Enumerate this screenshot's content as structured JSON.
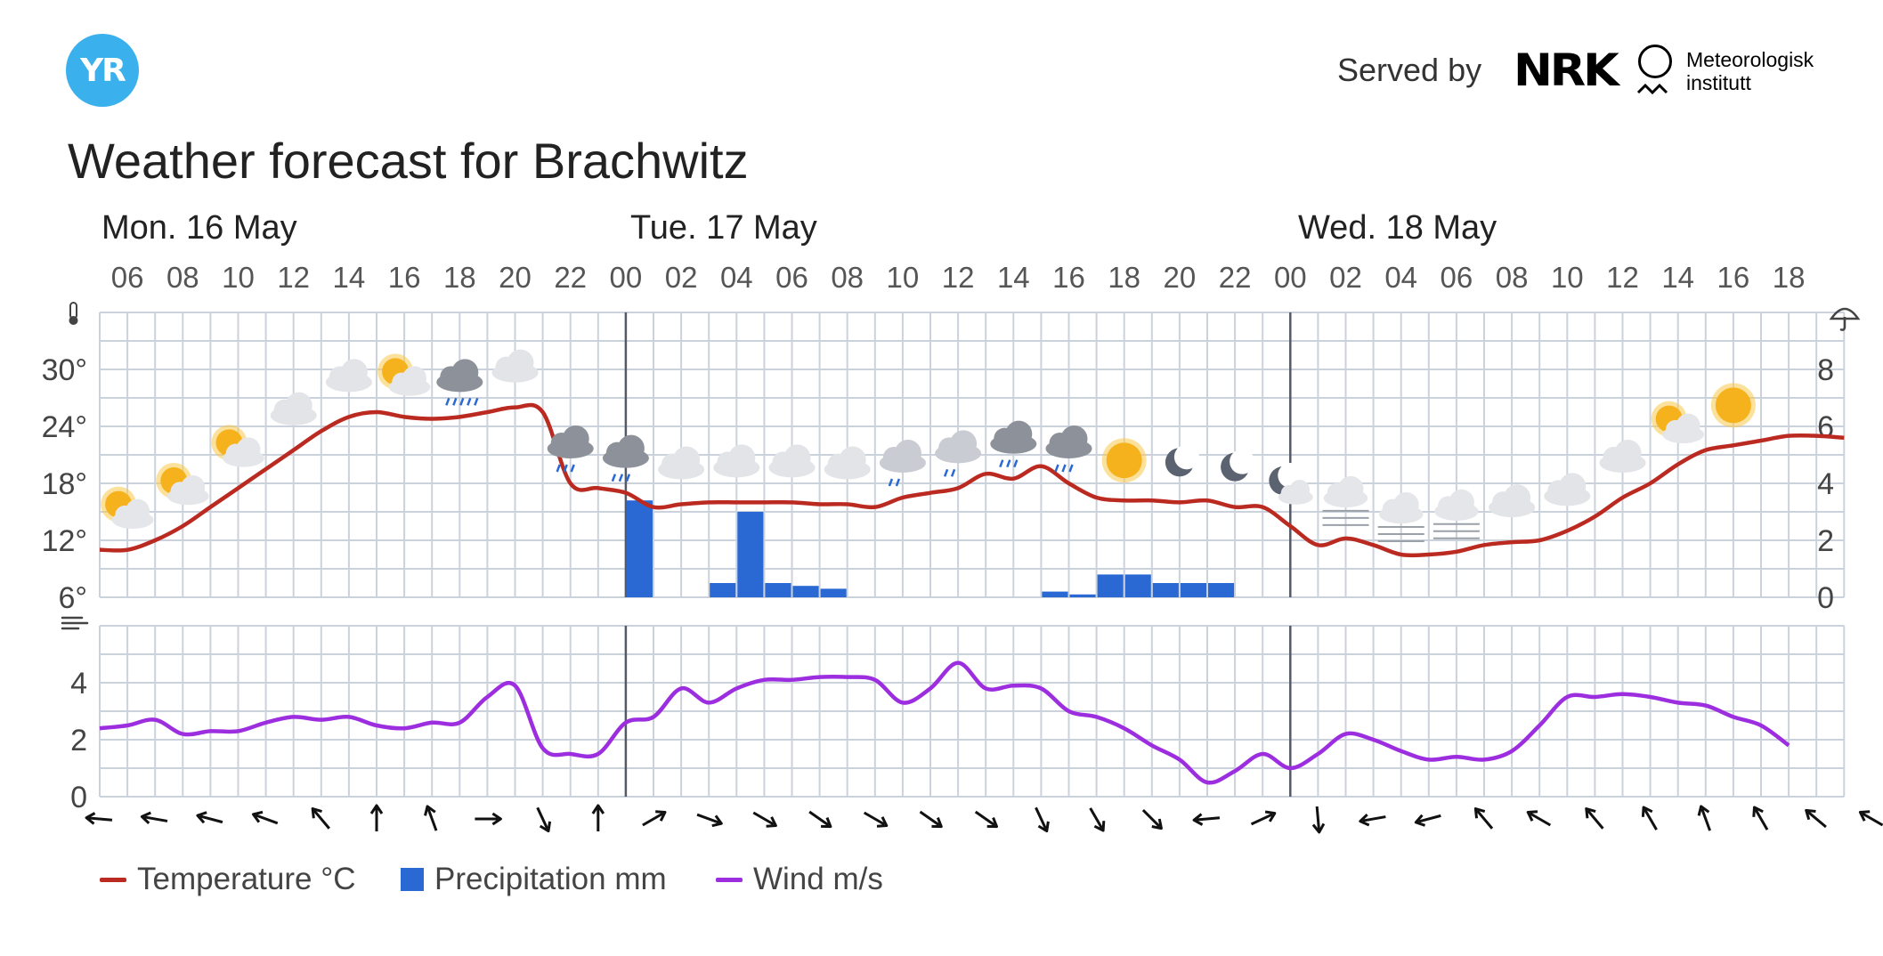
{
  "header": {
    "logo_text": "YR",
    "served_by": "Served by",
    "nrk_logo": "NRK",
    "met_line1": "Meteorologisk",
    "met_line2": "institutt"
  },
  "title": "Weather forecast for Brachwitz",
  "colors": {
    "temperature": "#bb2a20",
    "precipitation": "#2a69d3",
    "wind": "#9c2ee0",
    "grid": "#ccd2db",
    "day_divider": "#555b66",
    "brand": "#3ab0ec"
  },
  "icons": {
    "temp_axis": "thermometer-icon",
    "precip_axis": "umbrella-icon",
    "wind_axis": "wind-icon"
  },
  "chart_data": {
    "type": "line",
    "days": [
      "Mon. 16 May",
      "Tue. 17 May",
      "Wed. 18 May"
    ],
    "hour_labels": [
      "06",
      "08",
      "10",
      "12",
      "14",
      "16",
      "18",
      "20",
      "22",
      "00",
      "02",
      "04",
      "06",
      "08",
      "10",
      "12",
      "14",
      "16",
      "18",
      "20",
      "22",
      "00",
      "02",
      "04",
      "06",
      "08",
      "10",
      "12",
      "14",
      "16",
      "18"
    ],
    "temperature": {
      "name": "Temperature °C",
      "ylim": [
        6,
        36
      ],
      "ticks": [
        "6°",
        "12°",
        "18°",
        "24°",
        "30°"
      ],
      "values": [
        11,
        11,
        12,
        13.5,
        15.5,
        17.5,
        19.5,
        21.5,
        23.5,
        25,
        25.5,
        25,
        24.8,
        25,
        25.5,
        26,
        25.5,
        18,
        17.5,
        17,
        15.5,
        15.8,
        16,
        16,
        16,
        16,
        15.8,
        15.8,
        15.5,
        16.5,
        17,
        17.5,
        19,
        18.5,
        19.8,
        18,
        16.5,
        16.2,
        16.2,
        16,
        16.2,
        15.5,
        15.5,
        13.5,
        11.5,
        12.2,
        11.5,
        10.5,
        10.5,
        10.8,
        11.5,
        11.8,
        12,
        13,
        14.5,
        16.5,
        18,
        20,
        21.5,
        22,
        22.5,
        23,
        23,
        22.8
      ]
    },
    "precipitation": {
      "name": "Precipitation mm",
      "ylim": [
        0,
        10
      ],
      "ticks": [
        "0",
        "2",
        "4",
        "6",
        "8"
      ],
      "values": [
        0,
        0,
        0,
        0,
        0,
        0,
        0,
        0,
        0,
        0,
        0,
        0,
        0,
        0,
        0,
        0,
        0,
        0,
        0,
        3.4,
        0,
        0,
        0.5,
        3.0,
        0.5,
        0.4,
        0.3,
        0,
        0,
        0,
        0,
        0,
        0,
        0,
        0.2,
        0.1,
        0.8,
        0.8,
        0.5,
        0.5,
        0.5,
        0,
        0,
        0,
        0,
        0,
        0,
        0,
        0,
        0,
        0,
        0,
        0,
        0,
        0,
        0,
        0,
        0,
        0,
        0,
        0,
        0,
        0
      ]
    },
    "wind": {
      "name": "Wind m/s",
      "ylim": [
        0,
        6
      ],
      "ticks": [
        "0",
        "2",
        "4"
      ],
      "values": [
        2.4,
        2.5,
        2.7,
        2.2,
        2.3,
        2.3,
        2.6,
        2.8,
        2.7,
        2.8,
        2.5,
        2.4,
        2.6,
        2.6,
        3.5,
        3.9,
        1.7,
        1.5,
        1.5,
        2.6,
        2.8,
        3.8,
        3.3,
        3.8,
        4.1,
        4.1,
        4.2,
        4.2,
        4.1,
        3.3,
        3.8,
        4.7,
        3.8,
        3.9,
        3.8,
        3.0,
        2.8,
        2.4,
        1.8,
        1.3,
        0.5,
        0.9,
        1.5,
        1.0,
        1.5,
        2.2,
        2.0,
        1.6,
        1.3,
        1.4,
        1.3,
        1.6,
        2.5,
        3.5,
        3.5,
        3.6,
        3.5,
        3.3,
        3.2,
        2.8,
        2.5,
        1.8
      ]
    },
    "wind_direction_degrees": [
      275,
      280,
      285,
      290,
      320,
      0,
      340,
      90,
      155,
      0,
      60,
      110,
      120,
      125,
      120,
      125,
      125,
      155,
      150,
      135,
      265,
      65,
      175,
      260,
      255,
      320,
      300,
      320,
      330,
      340,
      330,
      310,
      300
    ],
    "weather_symbols": [
      "partly-cloudy-day-icon",
      "partly-cloudy-day-icon",
      "partly-cloudy-day-icon",
      "cloudy-icon",
      "cloudy-icon",
      "partly-cloudy-day-icon",
      "heavy-rain-icon",
      "cloudy-icon",
      "rain-icon",
      "rain-icon",
      "cloudy-icon",
      "cloudy-icon",
      "cloudy-icon",
      "cloudy-icon",
      "light-rain-icon",
      "light-rain-icon",
      "rain-icon",
      "rain-icon",
      "clear-day-icon",
      "clear-night-icon",
      "clear-night-icon",
      "partly-cloudy-night-icon",
      "fog-icon",
      "fog-icon",
      "fog-icon",
      "cloudy-icon",
      "cloudy-icon",
      "cloudy-icon",
      "partly-cloudy-day-icon",
      "clear-day-icon"
    ],
    "legend": [
      "Temperature °C",
      "Precipitation mm",
      "Wind m/s"
    ]
  }
}
